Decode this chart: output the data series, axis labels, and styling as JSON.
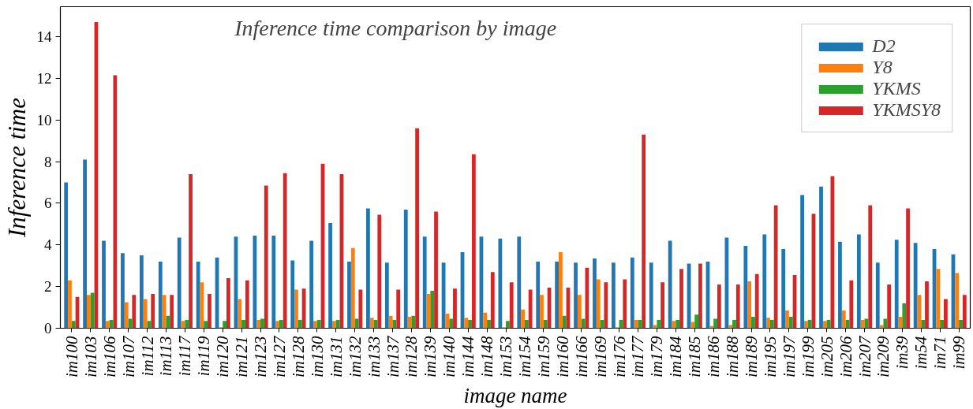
{
  "chart_data": {
    "type": "bar",
    "title": "Inference time comparison by image",
    "xlabel": "image name",
    "ylabel": "Inference time",
    "categories": [
      "im100",
      "im103",
      "im106",
      "im107",
      "im112",
      "im113",
      "im117",
      "im119",
      "im120",
      "im121",
      "im123",
      "im127",
      "im128",
      "im130",
      "im131",
      "im132",
      "im133",
      "im137",
      "im128",
      "im139",
      "im140",
      "im144",
      "im148",
      "im153",
      "im154",
      "im159",
      "im160",
      "im166",
      "im169",
      "im176",
      "im177",
      "im179",
      "im184",
      "im185",
      "im186",
      "im188",
      "im189",
      "im195",
      "im197",
      "im199",
      "im205",
      "im206",
      "im207",
      "im209",
      "im39",
      "im54",
      "im71",
      "im99"
    ],
    "series": [
      {
        "name": "D2",
        "color": "#1f77b4",
        "values": [
          7.0,
          8.1,
          4.2,
          3.6,
          3.5,
          3.2,
          4.35,
          3.2,
          3.4,
          4.4,
          4.45,
          4.45,
          3.25,
          4.2,
          5.05,
          3.2,
          5.75,
          3.15,
          5.7,
          4.4,
          3.15,
          3.65,
          4.4,
          4.3,
          4.4,
          3.2,
          3.2,
          3.15,
          3.35,
          3.15,
          3.4,
          3.15,
          4.2,
          3.1,
          3.2,
          4.35,
          3.95,
          4.5,
          3.8,
          6.4,
          6.8,
          4.15,
          4.5,
          3.15,
          4.25,
          4.1,
          3.8,
          3.55
        ]
      },
      {
        "name": "Y8",
        "color": "#ff7f0e",
        "values": [
          2.3,
          1.6,
          0.35,
          1.25,
          1.4,
          1.6,
          0.35,
          2.2,
          0.05,
          1.4,
          0.4,
          0.35,
          1.85,
          0.35,
          0.35,
          3.85,
          0.5,
          0.6,
          0.55,
          1.65,
          0.7,
          0.5,
          0.75,
          0.05,
          0.9,
          1.6,
          3.65,
          1.6,
          2.35,
          0.05,
          0.4,
          0.15,
          0.35,
          0.3,
          0.1,
          0.15,
          2.25,
          0.5,
          0.85,
          0.35,
          0.35,
          0.85,
          0.4,
          0.15,
          0.55,
          1.6,
          2.85,
          2.65
        ]
      },
      {
        "name": "YKMS",
        "color": "#2ca02c",
        "values": [
          0.35,
          1.7,
          0.4,
          0.45,
          0.35,
          0.6,
          0.4,
          0.35,
          0.35,
          0.4,
          0.45,
          0.4,
          0.4,
          0.4,
          0.4,
          0.45,
          0.4,
          0.4,
          0.6,
          1.8,
          0.45,
          0.4,
          0.4,
          0.35,
          0.4,
          0.4,
          0.6,
          0.45,
          0.4,
          0.4,
          0.4,
          0.4,
          0.4,
          0.65,
          0.45,
          0.4,
          0.55,
          0.4,
          0.55,
          0.4,
          0.4,
          0.4,
          0.45,
          0.45,
          1.2,
          0.4,
          0.4,
          0.4
        ]
      },
      {
        "name": "YKMSY8",
        "color": "#d62728",
        "values": [
          1.5,
          14.7,
          12.15,
          1.6,
          1.65,
          1.6,
          7.4,
          1.65,
          2.4,
          2.3,
          6.85,
          7.45,
          1.9,
          7.9,
          7.4,
          1.85,
          5.45,
          1.85,
          9.6,
          5.6,
          1.9,
          8.35,
          2.7,
          2.2,
          1.85,
          1.95,
          1.95,
          2.9,
          2.2,
          2.35,
          9.3,
          2.2,
          2.85,
          3.1,
          2.1,
          2.1,
          2.6,
          5.9,
          2.55,
          5.5,
          7.3,
          2.3,
          5.9,
          2.1,
          5.75,
          2.25,
          1.4,
          1.6
        ]
      }
    ],
    "ylim": [
      0,
      15.44
    ],
    "yticks": [
      0,
      2,
      4,
      6,
      8,
      10,
      12,
      14
    ],
    "legend": "top right",
    "grid": false
  }
}
